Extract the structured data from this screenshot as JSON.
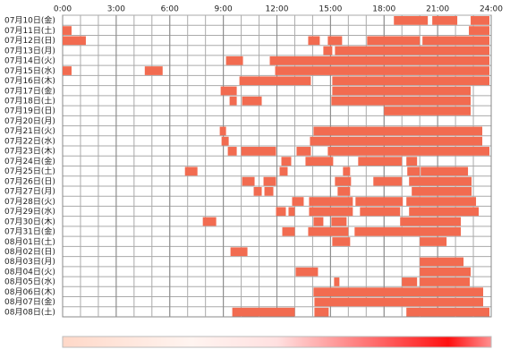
{
  "chart_data": {
    "type": "timeline",
    "color": "#f26b50",
    "xlim": [
      0,
      24
    ],
    "xticks": [
      {
        "value": 0,
        "label": "0:00"
      },
      {
        "value": 3,
        "label": "3:00"
      },
      {
        "value": 6,
        "label": "6:00"
      },
      {
        "value": 9,
        "label": "9:00"
      },
      {
        "value": 12,
        "label": "12:00"
      },
      {
        "value": 15,
        "label": "15:00"
      },
      {
        "value": 18,
        "label": "18:00"
      },
      {
        "value": 21,
        "label": "21:00"
      },
      {
        "value": 24,
        "label": "24:00"
      }
    ],
    "categories": [
      "07月10日(金)",
      "07月11日(土)",
      "07月12日(日)",
      "07月13日(月)",
      "07月14日(火)",
      "07月15日(水)",
      "07月16日(木)",
      "07月17日(金)",
      "07月18日(土)",
      "07月19日(日)",
      "07月20日(月)",
      "07月21日(火)",
      "07月22日(水)",
      "07月23日(木)",
      "07月24日(金)",
      "07月25日(土)",
      "07月26日(日)",
      "07月27日(月)",
      "07月28日(火)",
      "07月29日(水)",
      "07月30日(木)",
      "07月31日(金)",
      "08月01日(土)",
      "08月02日(日)",
      "08月03日(月)",
      "08月04日(火)",
      "08月05日(水)",
      "08月06日(木)",
      "08月07日(金)",
      "08月08日(土)"
    ],
    "intervals": [
      [
        [
          18.55,
          20.45
        ],
        [
          20.7,
          22.1
        ],
        [
          22.85,
          23.9
        ]
      ],
      [
        [
          0,
          0.5
        ],
        [
          22.75,
          23.9
        ]
      ],
      [
        [
          0,
          1.3
        ],
        [
          13.75,
          14.4
        ],
        [
          14.85,
          15.65
        ],
        [
          17.05,
          20
        ],
        [
          20.15,
          23.9
        ]
      ],
      [
        [
          14.6,
          15.1
        ],
        [
          15.25,
          23.9
        ]
      ],
      [
        [
          9.15,
          10.1
        ],
        [
          11.6,
          23.9
        ]
      ],
      [
        [
          0,
          0.5
        ],
        [
          4.6,
          5.6
        ],
        [
          11.9,
          23.9
        ]
      ],
      [
        [
          9.9,
          13.9
        ],
        [
          15.1,
          23.9
        ]
      ],
      [
        [
          8.85,
          9.75
        ],
        [
          15.1,
          22.85
        ]
      ],
      [
        [
          9.35,
          9.75
        ],
        [
          10.05,
          11.15
        ],
        [
          15.05,
          22.85
        ]
      ],
      [
        [
          18,
          22.85
        ]
      ],
      [],
      [
        [
          8.8,
          9.15
        ],
        [
          14.05,
          23.5
        ]
      ],
      [
        [
          8.9,
          9.3
        ],
        [
          13.85,
          23.5
        ]
      ],
      [
        [
          9.25,
          9.75
        ],
        [
          10,
          11.95
        ],
        [
          13.1,
          13.9
        ],
        [
          14.85,
          23.9
        ]
      ],
      [
        [
          12.25,
          12.8
        ],
        [
          13.6,
          15.15
        ],
        [
          16.55,
          19
        ],
        [
          19.25,
          19.85
        ]
      ],
      [
        [
          6.85,
          7.55
        ],
        [
          12.15,
          12.6
        ],
        [
          15.7,
          16.1
        ],
        [
          19.3,
          20
        ],
        [
          20.05,
          22.7
        ]
      ],
      [
        [
          10.05,
          10.75
        ],
        [
          11.25,
          11.95
        ],
        [
          15.25,
          16.15
        ],
        [
          17.4,
          19
        ],
        [
          19.4,
          22.9
        ]
      ],
      [
        [
          10.7,
          11.15
        ],
        [
          11.3,
          11.8
        ],
        [
          15.4,
          16.1
        ],
        [
          19.55,
          22.9
        ]
      ],
      [
        [
          12.85,
          13.5
        ],
        [
          13.8,
          16.25
        ],
        [
          16.4,
          19.05
        ],
        [
          19.25,
          23.15
        ]
      ],
      [
        [
          11.95,
          12.5
        ],
        [
          12.65,
          13
        ],
        [
          13.8,
          16.25
        ],
        [
          16.65,
          18.9
        ],
        [
          19.4,
          23.3
        ]
      ],
      [
        [
          7.85,
          8.6
        ],
        [
          14.05,
          14.6
        ],
        [
          15.05,
          15.9
        ],
        [
          18.9,
          22.3
        ]
      ],
      [
        [
          12.3,
          13
        ],
        [
          13.75,
          16
        ],
        [
          16.35,
          22.3
        ]
      ],
      [
        [
          15.1,
          16.1
        ],
        [
          20,
          21.5
        ]
      ],
      [
        [
          9.4,
          10.35
        ]
      ],
      [
        [
          20,
          22.45
        ]
      ],
      [
        [
          13.05,
          14.3
        ],
        [
          20,
          22.85
        ]
      ],
      [
        [
          15.2,
          15.5
        ],
        [
          19,
          19.85
        ],
        [
          20,
          22.8
        ]
      ],
      [
        [
          14.05,
          23.55
        ]
      ],
      [
        [
          14.1,
          23.55
        ]
      ],
      [
        [
          9.5,
          13
        ],
        [
          14.1,
          14.9
        ],
        [
          19.25,
          23.9
        ]
      ]
    ]
  }
}
